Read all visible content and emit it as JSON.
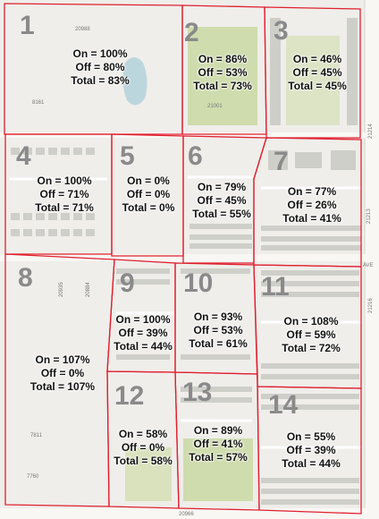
{
  "zones": [
    {
      "id": "1",
      "on": "On = 100%",
      "off": "Off = 80%",
      "total": "Total = 83%"
    },
    {
      "id": "2",
      "on": "On = 86%",
      "off": "Off = 53%",
      "total": "Total = 73%"
    },
    {
      "id": "3",
      "on": "On = 46%",
      "off": "Off = 45%",
      "total": "Total = 45%"
    },
    {
      "id": "4",
      "on": "On = 100%",
      "off": "Off = 71%",
      "total": "Total = 71%"
    },
    {
      "id": "5",
      "on": "On = 0%",
      "off": "Off = 0%",
      "total": "Total = 0%"
    },
    {
      "id": "6",
      "on": "On = 79%",
      "off": "Off = 45%",
      "total": "Total = 55%"
    },
    {
      "id": "7",
      "on": "On = 77%",
      "off": "Off = 26%",
      "total": "Total = 41%"
    },
    {
      "id": "8",
      "on": "On = 107%",
      "off": "Off = 0%",
      "total": "Total = 107%"
    },
    {
      "id": "9",
      "on": "On = 100%",
      "off": "Off = 39%",
      "total": "Total = 44%"
    },
    {
      "id": "10",
      "on": "On = 93%",
      "off": "Off = 53%",
      "total": "Total = 61%"
    },
    {
      "id": "11",
      "on": "On = 108%",
      "off": "Off = 59%",
      "total": "Total = 72%"
    },
    {
      "id": "12",
      "on": "On = 58%",
      "off": "Off = 0%",
      "total": "Total = 58%"
    },
    {
      "id": "13",
      "on": "On = 89%",
      "off": "Off = 41%",
      "total": "Total = 57%"
    },
    {
      "id": "14",
      "on": "On = 55%",
      "off": "Off = 39%",
      "total": "Total = 44%"
    }
  ],
  "map_labels": {
    "road_21213": "21213",
    "road_21216": "21216",
    "road_21214": "21214",
    "addr_20966": "20966",
    "addr_20988": "20988",
    "addr_7760": "7760",
    "addr_7811": "7811",
    "addr_8161": "8161",
    "addr_21001": "21001",
    "addr_20935": "20935",
    "addr_20884": "20884",
    "ave_label": "AVE"
  },
  "colors": {
    "boundary": "#e02030",
    "park": "#cfdcae",
    "water": "#bcd6dd",
    "housing": "#c9c9c4",
    "roads": "#ffffff",
    "background": "#efeeea"
  }
}
